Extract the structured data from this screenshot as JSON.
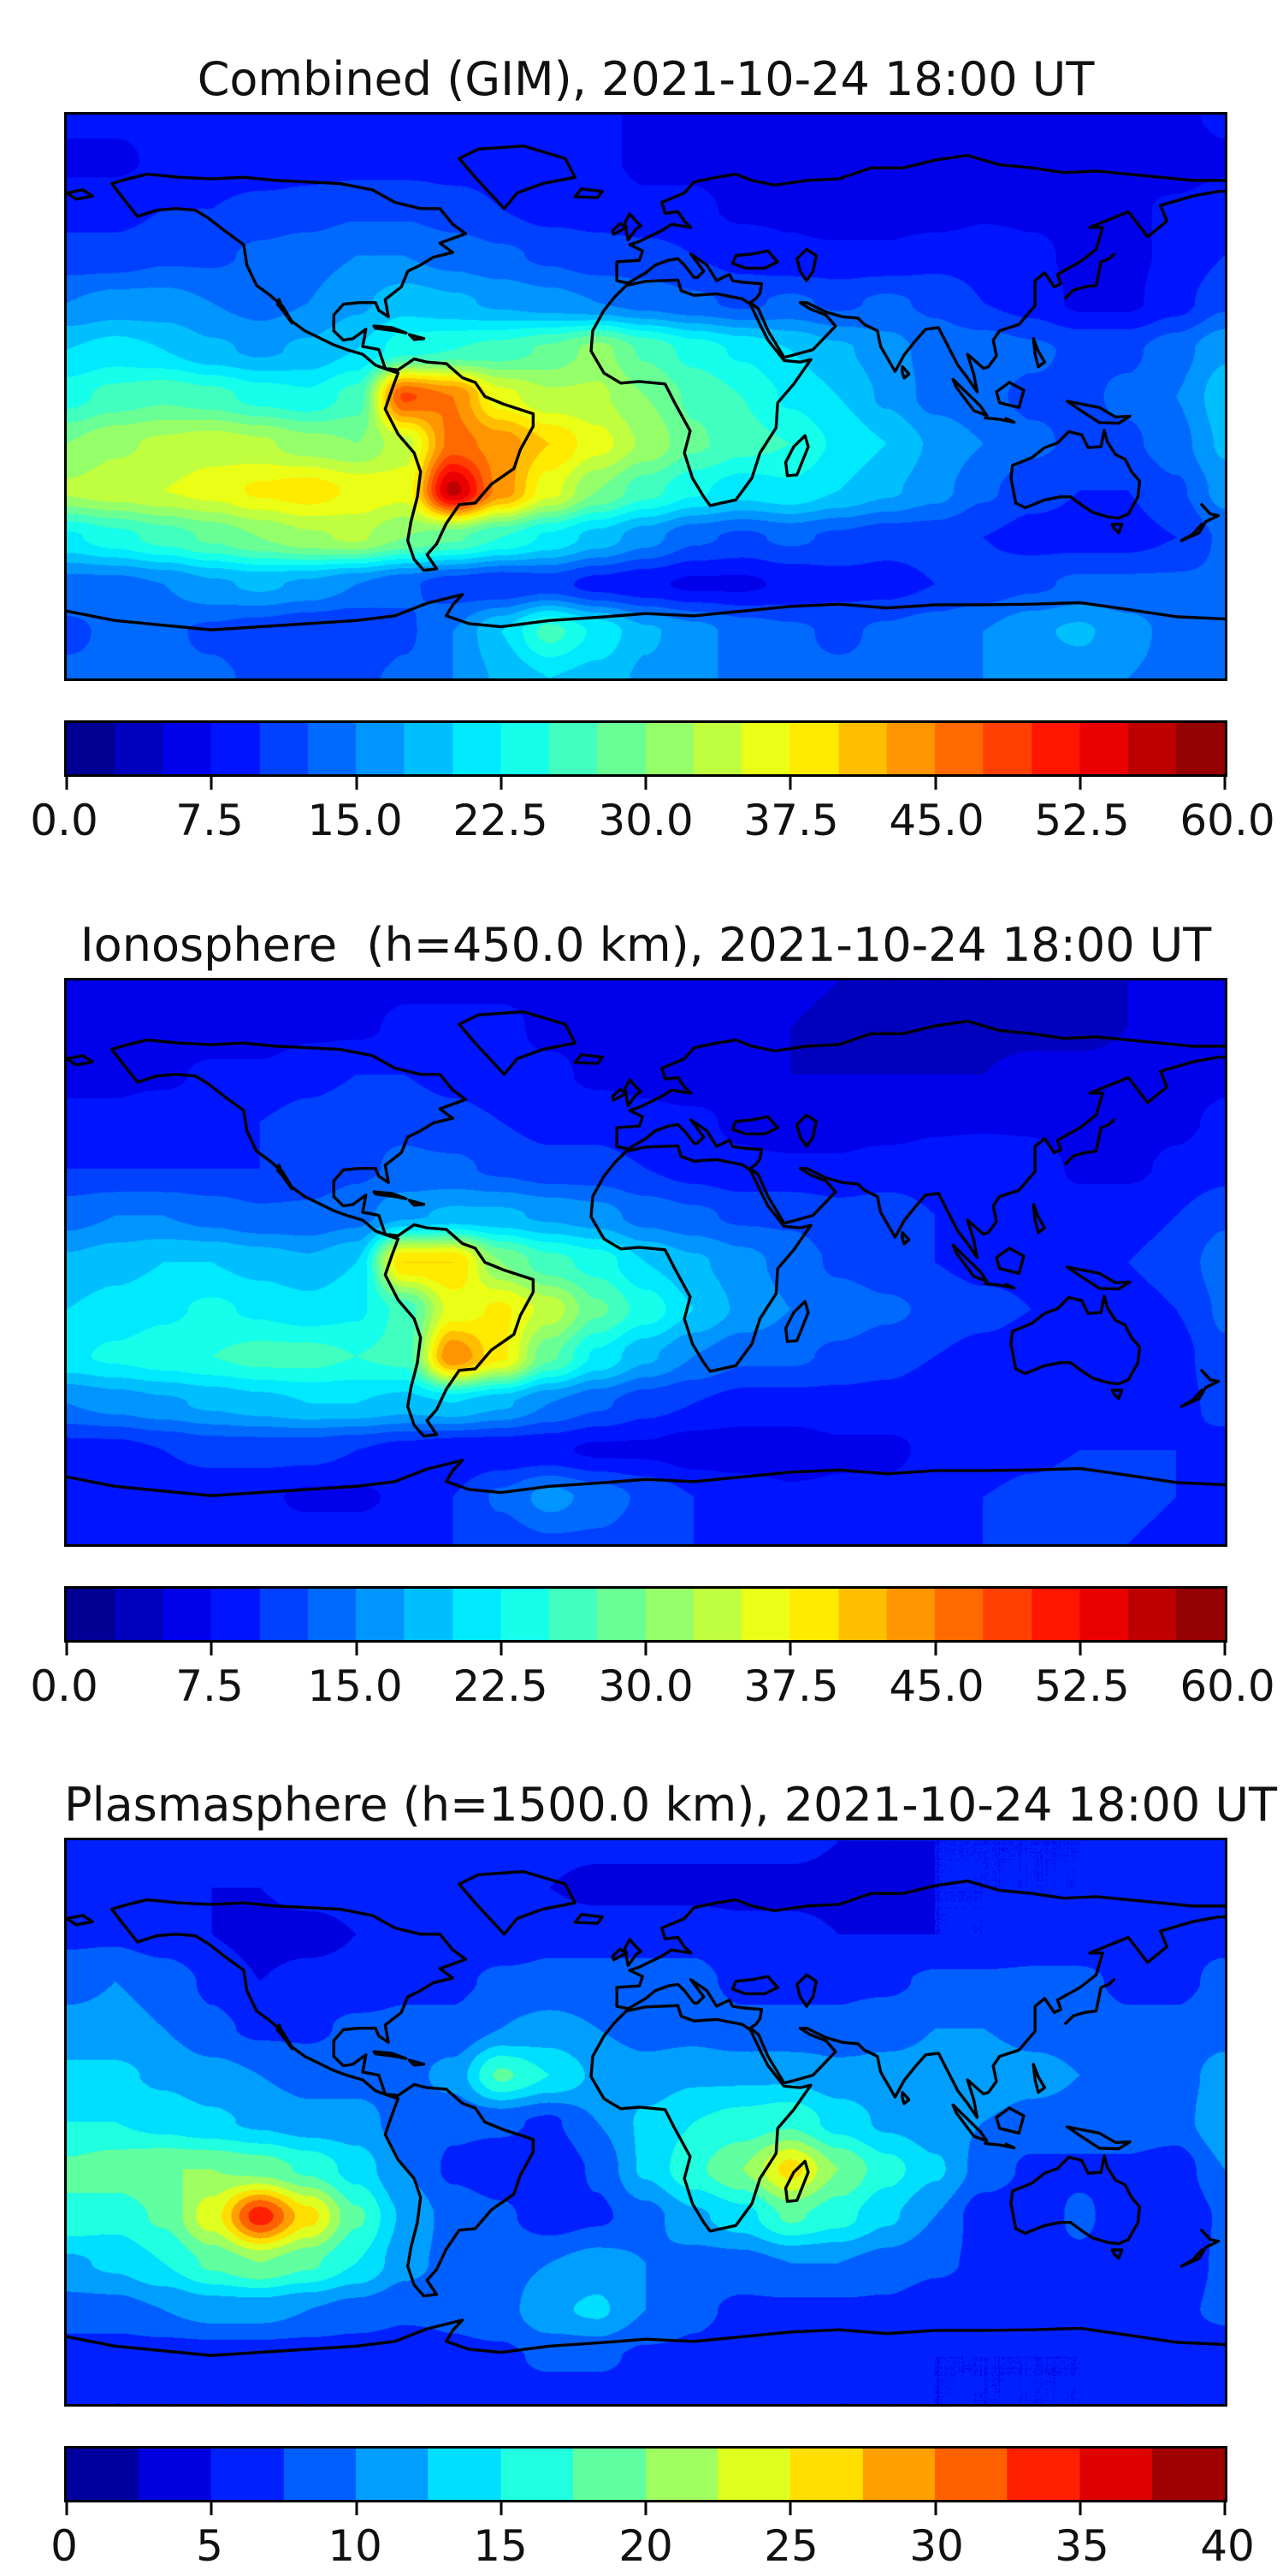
{
  "figure": {
    "background": "#ffffff",
    "colormap": "jet",
    "colormap_low": "#000080",
    "colormap_high": "#800000",
    "coastline_color": "#000000"
  },
  "panels": [
    {
      "title": "Combined (GIM), 2021-10-24 18:00 UT",
      "colorbar": {
        "min": 0.0,
        "max": 60.0,
        "segment_step": 2.5,
        "segments": 24,
        "tick_labels": [
          "0.0",
          "7.5",
          "15.0",
          "22.5",
          "30.0",
          "37.5",
          "45.0",
          "52.5",
          "60.0"
        ]
      }
    },
    {
      "title": "Ionosphere  (h=450.0 km), 2021-10-24 18:00 UT",
      "colorbar": {
        "min": 0.0,
        "max": 60.0,
        "segment_step": 2.5,
        "segments": 24,
        "tick_labels": [
          "0.0",
          "7.5",
          "15.0",
          "22.5",
          "30.0",
          "37.5",
          "45.0",
          "52.5",
          "60.0"
        ]
      }
    },
    {
      "title": "Plasmasphere (h=1500.0 km), 2021-10-24 18:00 UT",
      "colorbar": {
        "min": 0,
        "max": 40,
        "segment_step": 2.5,
        "segments": 16,
        "tick_labels": [
          "0",
          "5",
          "10",
          "15",
          "20",
          "25",
          "30",
          "35",
          "40"
        ]
      }
    }
  ],
  "chart_data": [
    {
      "type": "heatmap",
      "title": "Combined (GIM), 2021-10-24 18:00 UT",
      "colormap": "jet",
      "levels_min": 0,
      "levels_max": 60,
      "level_step": 2.5,
      "lon_min": -180,
      "lon_max": 180,
      "lon_step": 15,
      "lat_min": -90,
      "lat_max": 90,
      "lat_step": 15,
      "lat_order": "north_to_south",
      "values": [
        [
          8,
          8,
          8,
          8,
          8,
          8,
          8,
          8,
          8,
          8,
          8,
          8,
          7,
          7,
          7,
          7,
          6,
          6,
          6,
          6,
          6,
          7,
          7,
          7,
          8
        ],
        [
          7,
          7,
          8,
          8,
          8,
          9,
          9,
          9,
          9,
          9,
          8,
          8,
          7,
          7,
          6,
          6,
          5,
          5,
          5,
          5,
          5,
          6,
          6,
          6,
          7
        ],
        [
          9,
          9,
          10,
          10,
          11,
          11,
          12,
          12,
          11,
          10,
          9,
          9,
          8,
          8,
          7,
          7,
          6,
          6,
          6,
          7,
          7,
          7,
          7,
          8,
          9
        ],
        [
          11,
          11,
          12,
          12,
          13,
          14,
          15,
          15,
          14,
          13,
          12,
          11,
          11,
          10,
          9,
          8,
          8,
          8,
          9,
          9,
          8,
          7,
          7,
          8,
          10
        ],
        [
          15,
          16,
          16,
          15,
          14,
          15,
          17,
          19,
          18,
          17,
          16,
          15,
          14,
          13,
          12,
          13,
          12,
          13,
          12,
          10,
          9,
          7,
          7,
          9,
          12
        ],
        [
          20,
          21,
          20,
          18,
          17,
          18,
          20,
          24,
          25,
          26,
          28,
          31,
          27,
          24,
          22,
          20,
          18,
          16,
          14,
          14,
          13,
          12,
          12,
          14,
          17
        ],
        [
          24,
          26,
          27,
          26,
          24,
          23,
          26,
          48,
          45,
          36,
          33,
          33,
          30,
          27,
          25,
          22,
          20,
          17,
          14,
          13,
          12,
          12,
          13,
          15,
          19
        ],
        [
          30,
          32,
          33,
          34,
          33,
          31,
          30,
          34,
          46,
          44,
          40,
          36,
          32,
          28,
          26,
          25,
          22,
          20,
          17,
          15,
          13,
          12,
          12,
          14,
          18
        ],
        [
          33,
          34,
          35,
          36,
          38,
          39,
          37,
          36,
          56,
          44,
          36,
          30,
          26,
          23,
          21,
          22,
          20,
          18,
          16,
          13,
          11,
          10,
          10,
          12,
          16
        ],
        [
          22,
          24,
          26,
          28,
          30,
          32,
          33,
          30,
          28,
          25,
          22,
          19,
          16,
          13,
          12,
          13,
          12,
          11,
          11,
          10,
          9,
          9,
          9,
          10,
          13
        ],
        [
          14,
          14,
          15,
          17,
          18,
          17,
          15,
          13,
          11,
          10,
          11,
          9,
          8,
          7,
          7,
          8,
          9,
          9,
          10,
          11,
          12,
          13,
          13,
          13,
          13
        ],
        [
          12,
          13,
          13,
          12,
          11,
          10,
          10,
          12,
          15,
          20,
          26,
          22,
          18,
          16,
          14,
          13,
          12,
          13,
          14,
          15,
          17,
          18,
          16,
          14,
          13
        ],
        [
          13,
          13,
          13,
          13,
          12,
          12,
          12,
          13,
          15,
          18,
          20,
          19,
          17,
          16,
          14,
          13,
          13,
          13,
          14,
          15,
          16,
          16,
          15,
          14,
          13
        ]
      ]
    },
    {
      "type": "heatmap",
      "title": "Ionosphere  (h=450.0 km), 2021-10-24 18:00 UT",
      "colormap": "jet",
      "levels_min": 0,
      "levels_max": 60,
      "level_step": 2.5,
      "lon_min": -180,
      "lon_max": 180,
      "lon_step": 15,
      "lat_min": -90,
      "lat_max": 90,
      "lat_step": 15,
      "lat_order": "north_to_south",
      "values": [
        [
          6,
          6,
          6,
          6,
          6,
          6,
          6,
          7,
          7,
          7,
          7,
          7,
          7,
          7,
          6,
          6,
          5,
          5,
          5,
          5,
          5,
          5,
          5,
          6,
          6
        ],
        [
          5,
          5,
          6,
          6,
          6,
          7,
          7,
          8,
          8,
          8,
          7,
          7,
          6,
          6,
          5,
          5,
          4,
          4,
          4,
          4,
          4,
          4,
          5,
          5,
          5
        ],
        [
          7,
          7,
          7,
          8,
          8,
          9,
          10,
          10,
          9,
          8,
          8,
          7,
          7,
          6,
          6,
          5,
          5,
          5,
          5,
          5,
          6,
          6,
          6,
          6,
          7
        ],
        [
          8,
          8,
          9,
          9,
          10,
          11,
          12,
          12,
          11,
          10,
          9,
          9,
          8,
          8,
          7,
          6,
          6,
          6,
          7,
          7,
          7,
          6,
          6,
          7,
          8
        ],
        [
          10,
          10,
          10,
          10,
          10,
          11,
          12,
          13,
          13,
          12,
          11,
          11,
          10,
          9,
          8,
          8,
          8,
          9,
          9,
          10,
          9,
          7,
          7,
          8,
          9
        ],
        [
          14,
          15,
          15,
          14,
          13,
          13,
          14,
          17,
          18,
          18,
          17,
          16,
          14,
          13,
          12,
          12,
          11,
          11,
          10,
          10,
          10,
          9,
          9,
          10,
          12
        ],
        [
          18,
          19,
          20,
          20,
          19,
          18,
          20,
          40,
          40,
          30,
          26,
          24,
          20,
          18,
          16,
          14,
          12,
          11,
          10,
          9,
          9,
          9,
          10,
          11,
          14
        ],
        [
          20,
          21,
          22,
          23,
          22,
          21,
          22,
          26,
          36,
          38,
          34,
          28,
          24,
          20,
          17,
          15,
          14,
          13,
          12,
          11,
          10,
          9,
          9,
          10,
          13
        ],
        [
          22,
          23,
          24,
          25,
          26,
          26,
          25,
          26,
          45,
          38,
          28,
          22,
          18,
          15,
          13,
          13,
          12,
          11,
          10,
          9,
          8,
          8,
          8,
          9,
          12
        ],
        [
          15,
          16,
          17,
          18,
          19,
          20,
          20,
          19,
          20,
          18,
          15,
          13,
          11,
          10,
          9,
          9,
          9,
          9,
          8,
          8,
          8,
          8,
          8,
          9,
          11
        ],
        [
          9,
          9,
          10,
          11,
          11,
          11,
          10,
          9,
          8,
          8,
          8,
          7,
          7,
          6,
          6,
          6,
          7,
          7,
          8,
          8,
          9,
          10,
          10,
          10,
          9
        ],
        [
          8,
          8,
          8,
          8,
          8,
          7,
          7,
          8,
          10,
          13,
          16,
          14,
          12,
          10,
          9,
          8,
          8,
          8,
          9,
          10,
          11,
          12,
          11,
          10,
          9
        ],
        [
          9,
          9,
          9,
          9,
          9,
          9,
          9,
          9,
          10,
          11,
          12,
          12,
          11,
          10,
          9,
          9,
          9,
          9,
          9,
          10,
          10,
          10,
          10,
          9,
          9
        ]
      ]
    },
    {
      "type": "heatmap",
      "title": "Plasmasphere (h=1500.0 km), 2021-10-24 18:00 UT",
      "colormap": "jet",
      "levels_min": 0,
      "levels_max": 40,
      "level_step": 2.5,
      "lon_min": -180,
      "lon_max": 180,
      "lon_step": 15,
      "lat_min": -90,
      "lat_max": 90,
      "lat_step": 15,
      "lat_order": "north_to_south",
      "values": [
        [
          6,
          6,
          6,
          6,
          6,
          6,
          6,
          6,
          6,
          6,
          6,
          6,
          6,
          6,
          6,
          6,
          5,
          5,
          5,
          5,
          5,
          5,
          6,
          6,
          6
        ],
        [
          5,
          5,
          5,
          5,
          5,
          6,
          6,
          6,
          6,
          6,
          5,
          4,
          4,
          4,
          4,
          4,
          4,
          4,
          5,
          5,
          5,
          5,
          5,
          5,
          5
        ],
        [
          7,
          7,
          6,
          5,
          4,
          4,
          5,
          6,
          6,
          6,
          7,
          7,
          7,
          7,
          6,
          6,
          5,
          5,
          5,
          5,
          6,
          6,
          6,
          7,
          7
        ],
        [
          9,
          10,
          9,
          7,
          5,
          6,
          6,
          7,
          7,
          8,
          8,
          8,
          8,
          8,
          7,
          7,
          7,
          7,
          8,
          8,
          8,
          8,
          7,
          7,
          8
        ],
        [
          11,
          11,
          10,
          8,
          7,
          7,
          8,
          8,
          8,
          10,
          11,
          10,
          9,
          9,
          8,
          8,
          8,
          9,
          10,
          10,
          9,
          9,
          8,
          8,
          9
        ],
        [
          13,
          13,
          12,
          11,
          10,
          9,
          9,
          9,
          11,
          18,
          15,
          12,
          11,
          12,
          12,
          12,
          11,
          11,
          11,
          12,
          11,
          10,
          9,
          9,
          11
        ],
        [
          15,
          15,
          14,
          13,
          12,
          11,
          11,
          9,
          8,
          8,
          7,
          10,
          13,
          15,
          16,
          17,
          14,
          12,
          11,
          10,
          9,
          9,
          9,
          9,
          12
        ],
        [
          18,
          19,
          20,
          20,
          19,
          17,
          14,
          10,
          7,
          6,
          5,
          8,
          13,
          17,
          20,
          26,
          20,
          16,
          13,
          9,
          7,
          7,
          7,
          6,
          10
        ],
        [
          17,
          16,
          18,
          24,
          34,
          26,
          18,
          12,
          9,
          8,
          6,
          7,
          9,
          12,
          14,
          18,
          16,
          13,
          10,
          6,
          6,
          8,
          6,
          5,
          8
        ],
        [
          12,
          13,
          15,
          18,
          20,
          18,
          15,
          11,
          9,
          9,
          10,
          11,
          10,
          9,
          9,
          10,
          10,
          9,
          8,
          7,
          7,
          7,
          6,
          6,
          8
        ],
        [
          9,
          9,
          10,
          11,
          11,
          10,
          9,
          8,
          8,
          9,
          12,
          13,
          10,
          8,
          7,
          7,
          7,
          7,
          6,
          6,
          6,
          6,
          6,
          7,
          8
        ],
        [
          6,
          6,
          6,
          6,
          6,
          6,
          6,
          6,
          7,
          7,
          8,
          8,
          7,
          7,
          6,
          6,
          6,
          6,
          5,
          5,
          5,
          5,
          6,
          6,
          6
        ],
        [
          5,
          5,
          5,
          5,
          5,
          5,
          5,
          5,
          5,
          6,
          6,
          6,
          6,
          5,
          5,
          5,
          5,
          5,
          5,
          5,
          5,
          5,
          5,
          5,
          5
        ]
      ]
    }
  ]
}
